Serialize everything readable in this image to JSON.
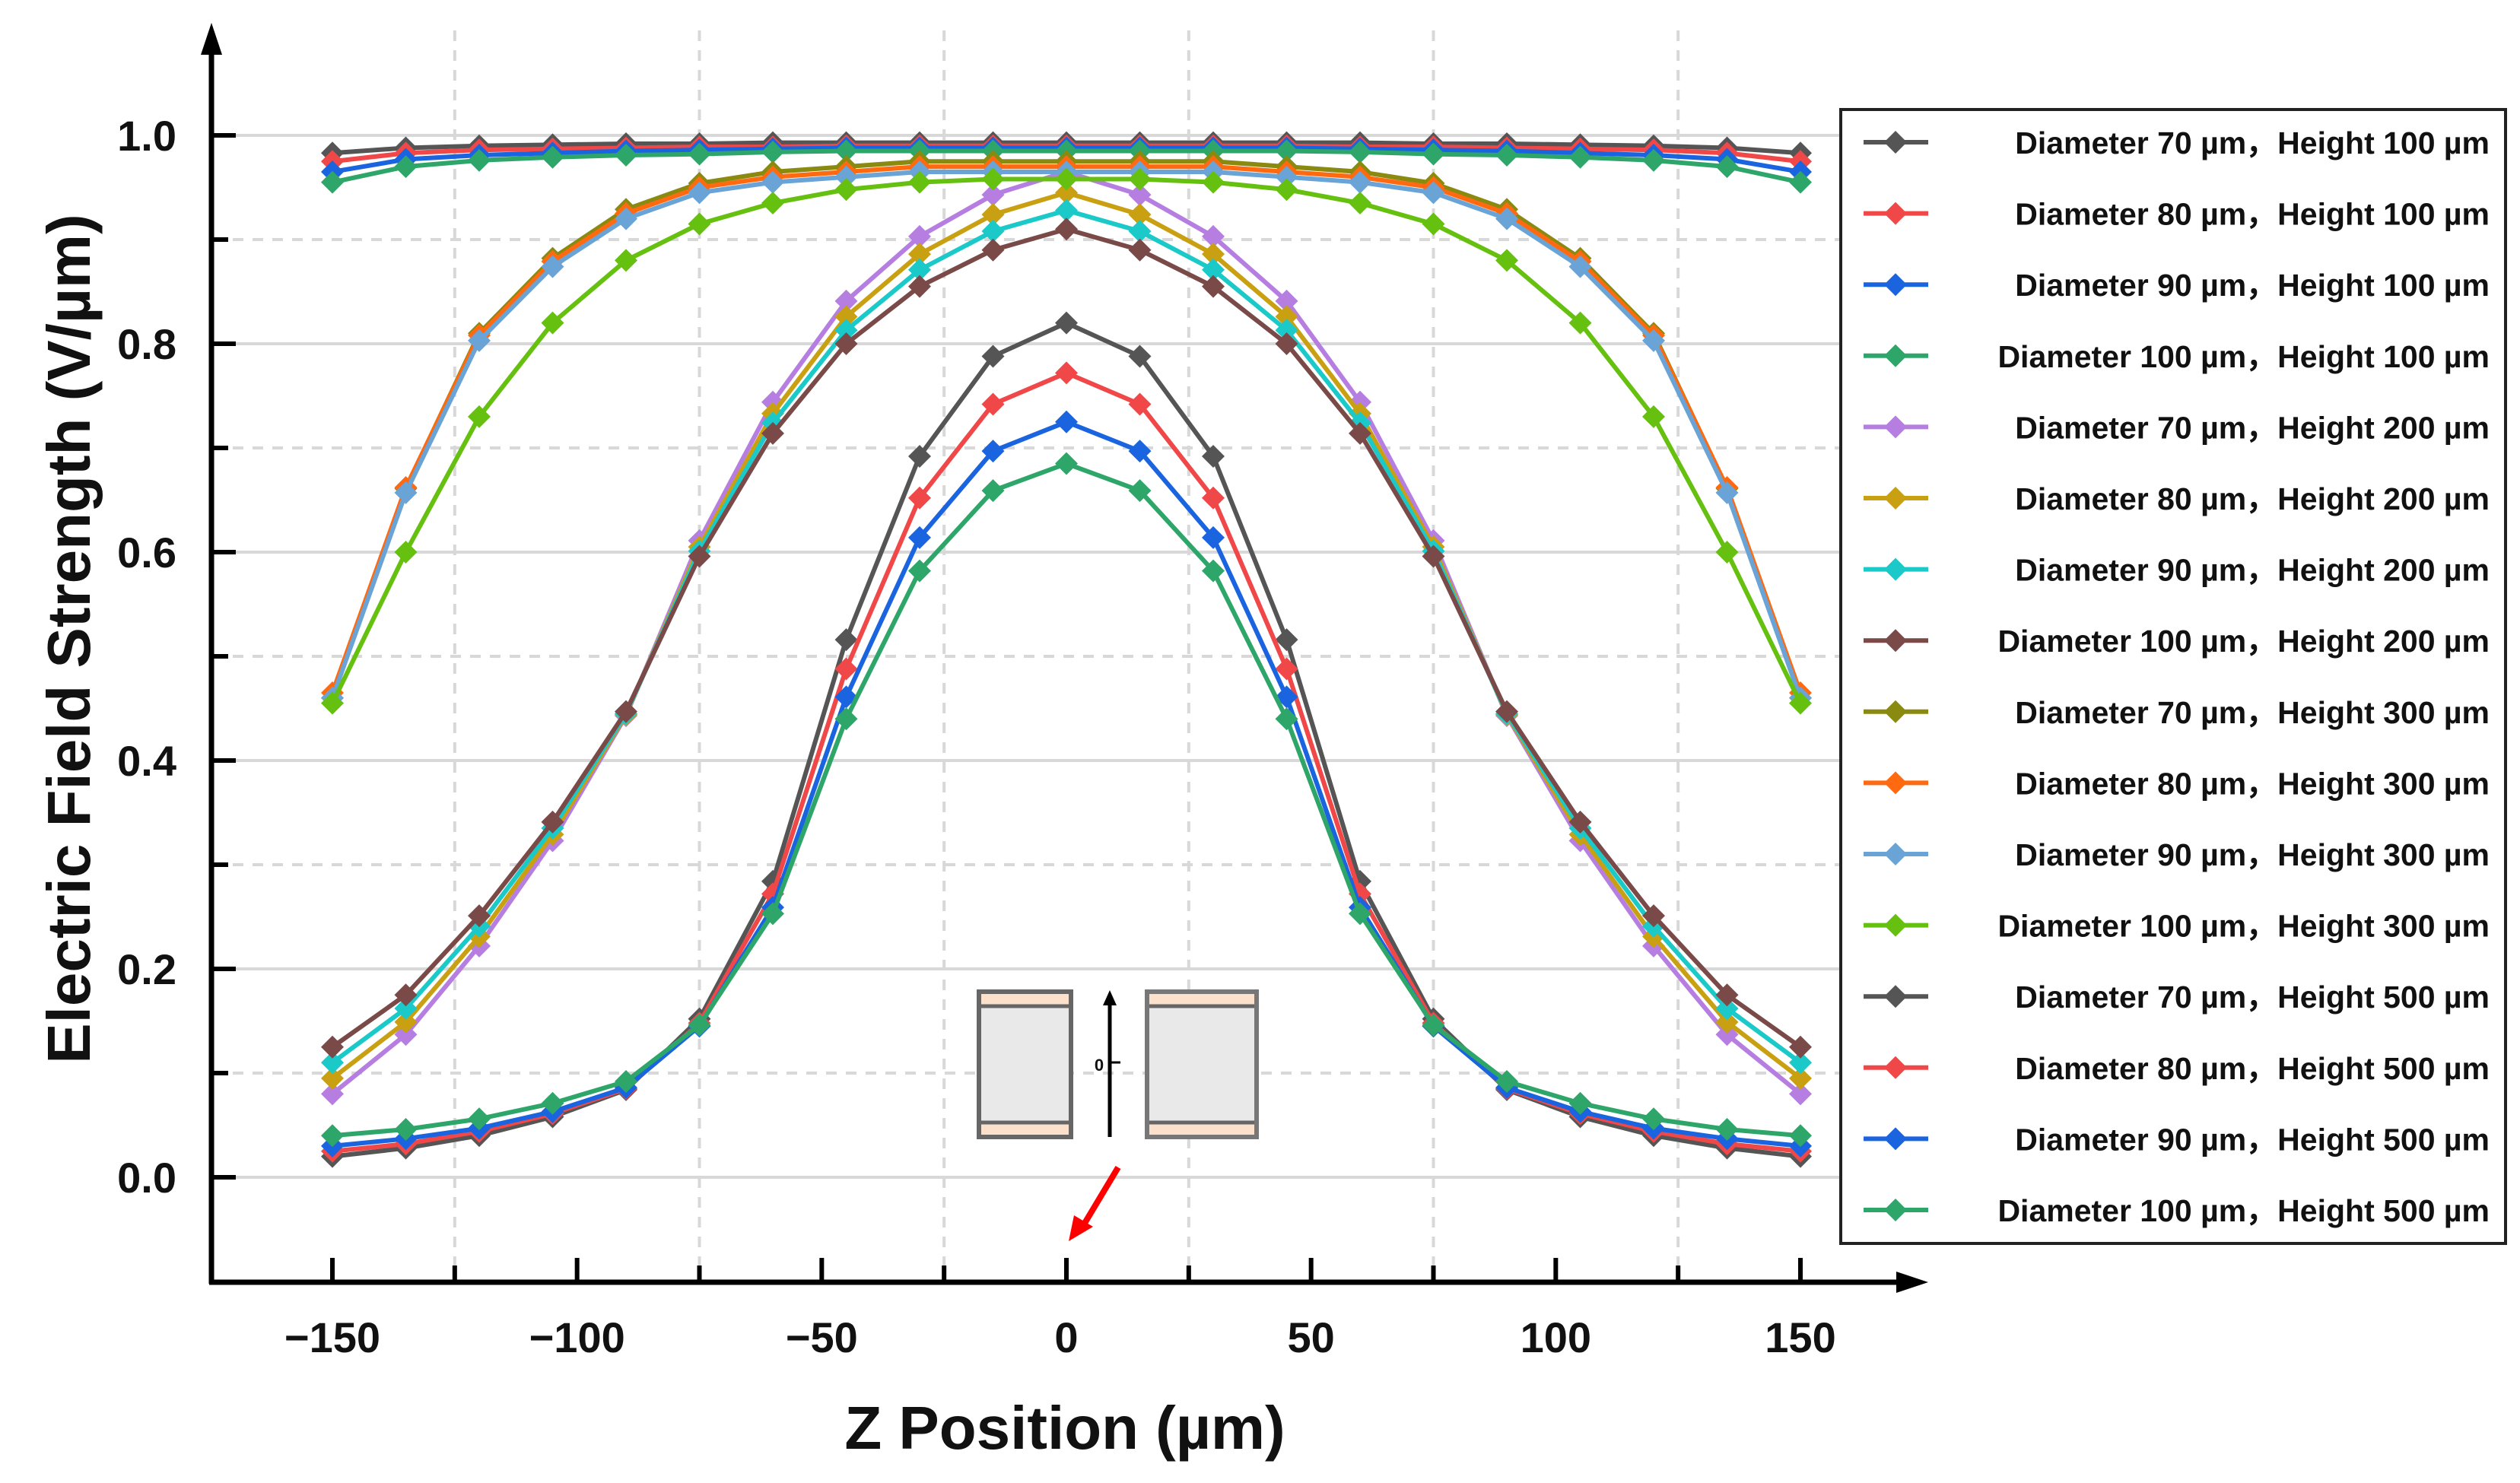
{
  "chart_data": {
    "type": "line",
    "title": "",
    "xlabel": "Z Position (µm)",
    "ylabel": "Electric Field Strength (V/µm)",
    "xlim": [
      -150,
      150
    ],
    "ylim": [
      0,
      1.0
    ],
    "xticks": [
      "−150",
      "−100",
      "−50",
      "0",
      "50",
      "100",
      "150"
    ],
    "xtick_values": [
      -150,
      -100,
      -50,
      0,
      50,
      100,
      150
    ],
    "yticks": [
      "0.0",
      "0.2",
      "0.4",
      "0.6",
      "0.8",
      "1.0"
    ],
    "ytick_values": [
      0,
      0.2,
      0.4,
      0.6,
      0.8,
      1.0
    ],
    "grid": true,
    "legend_position": "right",
    "inset_zero_label": "0",
    "x": [
      -150,
      -135,
      -120,
      -105,
      -90,
      -75,
      -60,
      -45,
      -30,
      -15,
      0,
      15,
      30,
      45,
      60,
      75,
      90,
      105,
      120,
      135,
      150
    ],
    "series": [
      {
        "name": "Diameter 70  µm，Height 100  µm",
        "color": "#555555",
        "half": [
          0.983,
          0.988,
          0.99,
          0.991,
          0.992,
          0.992,
          0.993,
          0.993,
          0.993,
          0.993,
          0.993
        ]
      },
      {
        "name": "Diameter 80  µm，Height 100  µm",
        "color": "#f04848",
        "half": [
          0.975,
          0.983,
          0.986,
          0.987,
          0.988,
          0.989,
          0.989,
          0.99,
          0.99,
          0.99,
          0.99
        ]
      },
      {
        "name": "Diameter 90  µm，Height 100  µm",
        "color": "#1a64e0",
        "half": [
          0.965,
          0.977,
          0.981,
          0.983,
          0.985,
          0.986,
          0.987,
          0.988,
          0.988,
          0.988,
          0.988
        ]
      },
      {
        "name": "Diameter 100  µm，Height 100  µm",
        "color": "#2ea66a",
        "half": [
          0.955,
          0.97,
          0.976,
          0.979,
          0.981,
          0.982,
          0.984,
          0.985,
          0.985,
          0.985,
          0.985
        ]
      },
      {
        "name": "Diameter 70  µm，Height 200  µm",
        "color": "#b57ee0",
        "half": [
          0.08,
          0.137,
          0.222,
          0.323,
          0.443,
          0.611,
          0.744,
          0.841,
          0.903,
          0.943,
          0.965
        ]
      },
      {
        "name": "Diameter 80  µm，Height 200  µm",
        "color": "#c9a012",
        "half": [
          0.095,
          0.149,
          0.231,
          0.329,
          0.444,
          0.605,
          0.733,
          0.826,
          0.886,
          0.924,
          0.945
        ]
      },
      {
        "name": "Diameter 90  µm，Height 200  µm",
        "color": "#1cc9c9",
        "half": [
          0.11,
          0.162,
          0.241,
          0.335,
          0.445,
          0.601,
          0.724,
          0.813,
          0.871,
          0.908,
          0.928
        ]
      },
      {
        "name": "Diameter 100  µm，Height 200  µm",
        "color": "#7a4a48",
        "half": [
          0.125,
          0.175,
          0.251,
          0.341,
          0.447,
          0.596,
          0.714,
          0.8,
          0.855,
          0.89,
          0.91
        ]
      },
      {
        "name": "Diameter 70  µm，Height 300  µm",
        "color": "#8a8a10",
        "half": [
          0.46,
          0.661,
          0.81,
          0.882,
          0.929,
          0.954,
          0.965,
          0.97,
          0.975,
          0.975,
          0.975
        ]
      },
      {
        "name": "Diameter 80  µm，Height 300  µm",
        "color": "#ff6a10",
        "half": [
          0.465,
          0.662,
          0.808,
          0.879,
          0.925,
          0.95,
          0.96,
          0.965,
          0.97,
          0.97,
          0.97
        ]
      },
      {
        "name": "Diameter 90  µm，Height 300  µm",
        "color": "#6aa3d6",
        "half": [
          0.46,
          0.657,
          0.803,
          0.874,
          0.92,
          0.945,
          0.955,
          0.96,
          0.965,
          0.965,
          0.965
        ]
      },
      {
        "name": "Diameter 100  µm，Height 300  µm",
        "color": "#66c010",
        "half": [
          0.455,
          0.6,
          0.73,
          0.82,
          0.88,
          0.915,
          0.935,
          0.948,
          0.955,
          0.958,
          0.958
        ]
      },
      {
        "name": "Diameter 70  µm，Height 500  µm",
        "color": "#555555",
        "half": [
          0.02,
          0.028,
          0.04,
          0.058,
          0.084,
          0.152,
          0.284,
          0.516,
          0.692,
          0.788,
          0.82
        ]
      },
      {
        "name": "Diameter 80  µm，Height 500  µm",
        "color": "#f04848",
        "half": [
          0.025,
          0.032,
          0.044,
          0.061,
          0.085,
          0.148,
          0.272,
          0.488,
          0.652,
          0.742,
          0.772
        ]
      },
      {
        "name": "Diameter 90  µm，Height 500  µm",
        "color": "#1a64e0",
        "half": [
          0.03,
          0.037,
          0.047,
          0.063,
          0.086,
          0.145,
          0.259,
          0.461,
          0.614,
          0.697,
          0.725
        ]
      },
      {
        "name": "Diameter 100  µm，Height 500  µm",
        "color": "#2ea66a",
        "half": [
          0.04,
          0.046,
          0.056,
          0.071,
          0.092,
          0.146,
          0.253,
          0.44,
          0.582,
          0.659,
          0.685
        ]
      }
    ],
    "series_note_values_format": "half = values at z=-150..0; curve is symmetric about z=0"
  }
}
